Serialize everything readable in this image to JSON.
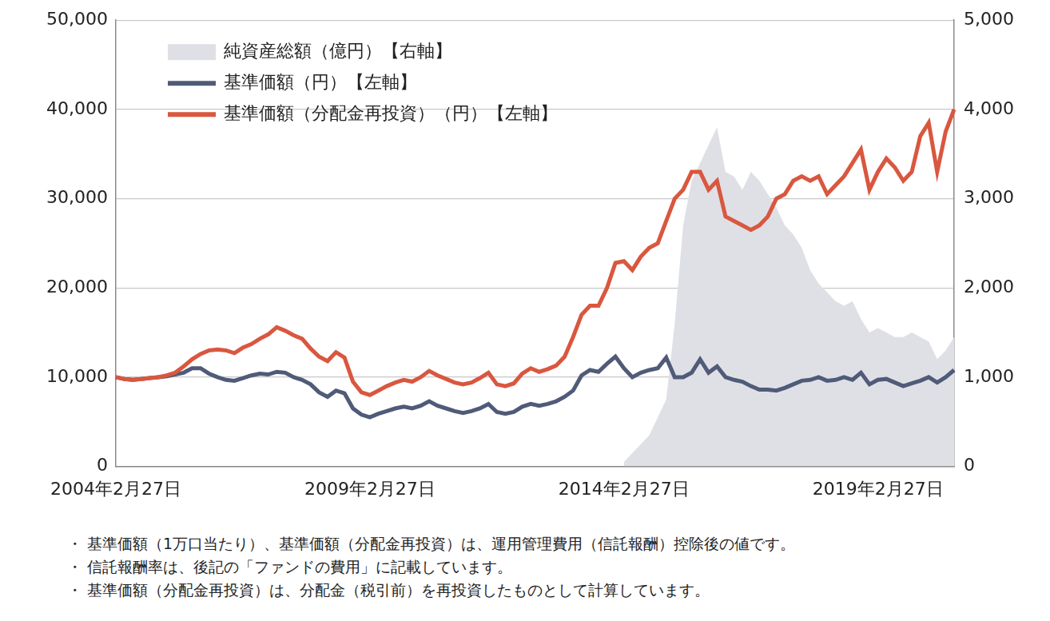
{
  "chart_data": {
    "type": "line",
    "categories": [
      "2004年2月27日",
      null,
      null,
      null,
      null,
      null,
      null,
      null,
      null,
      null,
      null,
      null,
      null,
      null,
      null,
      null,
      null,
      null,
      null,
      null,
      null,
      null,
      null,
      null,
      null,
      null,
      null,
      null,
      null,
      null,
      "2009年2月27日",
      null,
      null,
      null,
      null,
      null,
      null,
      null,
      null,
      null,
      null,
      null,
      null,
      null,
      null,
      null,
      null,
      null,
      null,
      null,
      null,
      null,
      null,
      null,
      null,
      null,
      null,
      null,
      null,
      null,
      "2014年2月27日",
      null,
      null,
      null,
      null,
      null,
      null,
      null,
      null,
      null,
      null,
      null,
      null,
      null,
      null,
      null,
      null,
      null,
      null,
      null,
      null,
      null,
      null,
      null,
      null,
      null,
      null,
      null,
      null,
      null,
      "2019年2月27日",
      null,
      null,
      null,
      null,
      null,
      null,
      null,
      null,
      null
    ],
    "series": [
      {
        "name": "純資産総額（億円）【右軸】",
        "type": "area",
        "axis": "y2",
        "color": "#dfe0e6",
        "values": [
          null,
          null,
          null,
          null,
          null,
          null,
          null,
          null,
          null,
          null,
          null,
          null,
          null,
          null,
          null,
          null,
          null,
          null,
          null,
          null,
          null,
          null,
          null,
          null,
          null,
          null,
          null,
          null,
          null,
          null,
          null,
          null,
          null,
          null,
          null,
          null,
          null,
          null,
          null,
          null,
          null,
          null,
          null,
          null,
          null,
          null,
          null,
          null,
          null,
          null,
          null,
          null,
          null,
          null,
          null,
          null,
          null,
          null,
          null,
          null,
          50,
          150,
          250,
          350,
          550,
          750,
          1600,
          2700,
          3200,
          3400,
          3600,
          3800,
          3300,
          3250,
          3100,
          3300,
          3200,
          3050,
          2900,
          2700,
          2600,
          2450,
          2200,
          2050,
          1950,
          1850,
          1800,
          1850,
          1650,
          1500,
          1550,
          1500,
          1450,
          1450,
          1500,
          1450,
          1400,
          1200,
          1300,
          1450
        ]
      },
      {
        "name": "基準価額（円）【左軸】",
        "type": "line",
        "color": "#4f5b78",
        "values": [
          10000,
          9800,
          9700,
          9800,
          9900,
          10000,
          10100,
          10300,
          10500,
          11000,
          11000,
          10400,
          10000,
          9700,
          9600,
          9900,
          10200,
          10400,
          10300,
          10600,
          10500,
          10000,
          9700,
          9200,
          8300,
          7800,
          8500,
          8200,
          6500,
          5800,
          5500,
          5900,
          6200,
          6500,
          6700,
          6500,
          6800,
          7300,
          6800,
          6500,
          6200,
          6000,
          6200,
          6500,
          7000,
          6100,
          5900,
          6100,
          6700,
          7000,
          6800,
          7000,
          7300,
          7800,
          8500,
          10200,
          10800,
          10600,
          11500,
          12300,
          11000,
          10000,
          10500,
          10800,
          11000,
          12200,
          10000,
          10000,
          10500,
          12000,
          10500,
          11200,
          10000,
          9700,
          9500,
          9000,
          8600,
          8600,
          8500,
          8800,
          9200,
          9600,
          9700,
          10000,
          9600,
          9700,
          10000,
          9700,
          10500,
          9200,
          9700,
          9800,
          9400,
          9000,
          9300,
          9600,
          10000,
          9400,
          10000,
          10800
        ]
      },
      {
        "name": "基準価額（分配金再投資）（円）【左軸】",
        "type": "line",
        "color": "#d9573f",
        "values": [
          10000,
          9800,
          9700,
          9800,
          9900,
          10000,
          10200,
          10500,
          11200,
          12000,
          12600,
          13000,
          13100,
          13000,
          12700,
          13300,
          13700,
          14300,
          14800,
          15600,
          15200,
          14700,
          14300,
          13200,
          12300,
          11800,
          12800,
          12200,
          9500,
          8300,
          8000,
          8500,
          9000,
          9400,
          9700,
          9500,
          10000,
          10700,
          10200,
          9800,
          9400,
          9200,
          9400,
          9900,
          10500,
          9200,
          9000,
          9300,
          10400,
          11000,
          10600,
          10900,
          11300,
          12300,
          14500,
          17000,
          18000,
          18000,
          20000,
          22800,
          23000,
          22000,
          23500,
          24500,
          25000,
          27500,
          30000,
          31000,
          33000,
          33000,
          31000,
          32000,
          28000,
          27500,
          27000,
          26500,
          27000,
          28000,
          30000,
          30500,
          32000,
          32500,
          32000,
          32500,
          30500,
          31500,
          32500,
          34000,
          35500,
          31000,
          33000,
          34500,
          33500,
          32000,
          33000,
          37000,
          38500,
          33000,
          37500,
          40000
        ]
      }
    ],
    "ylim": [
      0,
      50000
    ],
    "yticks": [
      0,
      {
        "value": 10000,
        "label": "10,000"
      },
      {
        "value": 20000,
        "label": "20,000"
      },
      {
        "value": 30000,
        "label": "30,000"
      },
      {
        "value": 40000,
        "label": "40,000"
      },
      {
        "value": 50000,
        "label": "50,000"
      }
    ],
    "y2lim": [
      0,
      5000
    ],
    "y2ticks": [
      0,
      {
        "value": 1000,
        "label": "1,000"
      },
      {
        "value": 2000,
        "label": "2,000"
      },
      {
        "value": 3000,
        "label": "3,000"
      },
      {
        "value": 4000,
        "label": "4,000"
      },
      {
        "value": 5000,
        "label": "5,000"
      }
    ],
    "grid": true,
    "legend": "upper left",
    "notes": [
      "・ 基準価額（1万口当たり）、基準価額（分配金再投資）は、運用管理費用（信託報酬）控除後の値です。",
      "・ 信託報酬率は、後記の「ファンドの費用」に記載しています。",
      "・ 基準価額（分配金再投資）は、分配金（税引前）を再投資したものとして計算しています。"
    ]
  }
}
